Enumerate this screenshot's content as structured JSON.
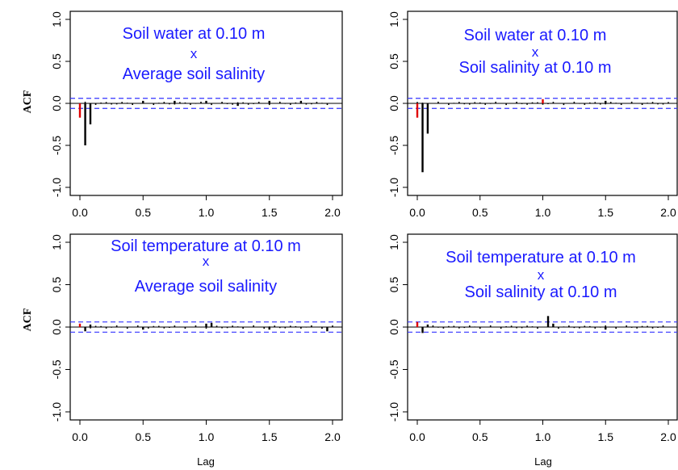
{
  "colors": {
    "frame": "#000000",
    "acf_bar": "#000000",
    "lag_zero_bar": "#e00000",
    "confidence_band": "#3333ff",
    "title_text": "#1a1aff"
  },
  "axis_labels": {
    "y": "ACF",
    "x": "Lag"
  },
  "chart_data": [
    {
      "type": "bar",
      "title_lines": [
        "Soil water at 0.10 m",
        "x",
        "Average soil salinity"
      ],
      "xlabel": "",
      "ylabel": "ACF",
      "xlim": [
        0,
        2
      ],
      "ylim": [
        -1,
        1
      ],
      "xticks": [
        "0.0",
        "0.5",
        "1.0",
        "1.5",
        "2.0"
      ],
      "yticks": [
        "1.0",
        "0.5",
        "0.0",
        "-0.5",
        "-1.0"
      ],
      "confidence_band": [
        0.06,
        -0.06
      ],
      "highlighted_lags": [
        0
      ],
      "lags": [
        0.0,
        0.042,
        0.083,
        0.5,
        0.75,
        1.0,
        1.25,
        1.5,
        1.75
      ],
      "acf": [
        -0.17,
        -0.5,
        -0.25,
        0.03,
        0.03,
        0.03,
        -0.03,
        0.03,
        0.03
      ]
    },
    {
      "type": "bar",
      "title_lines": [
        "Soil water at 0.10 m",
        "x",
        "Soil salinity at 0.10 m"
      ],
      "xlabel": "",
      "ylabel": "",
      "xlim": [
        0,
        2
      ],
      "ylim": [
        -1,
        1
      ],
      "xticks": [
        "0.0",
        "0.5",
        "1.0",
        "1.5",
        "2.0"
      ],
      "yticks": [
        "1.0",
        "0.5",
        "0.0",
        "-0.5",
        "-1.0"
      ],
      "confidence_band": [
        0.06,
        -0.06
      ],
      "highlighted_lags": [
        0,
        1.0
      ],
      "lags": [
        0.0,
        0.042,
        0.083,
        1.0,
        1.5
      ],
      "acf": [
        -0.17,
        -0.82,
        -0.36,
        0.05,
        0.03
      ]
    },
    {
      "type": "bar",
      "title_lines": [
        "Soil temperature at 0.10 m",
        "x",
        "Average soil salinity"
      ],
      "xlabel": "Lag",
      "ylabel": "ACF",
      "xlim": [
        0,
        2
      ],
      "ylim": [
        -1,
        1
      ],
      "xticks": [
        "0.0",
        "0.5",
        "1.0",
        "1.5",
        "2.0"
      ],
      "yticks": [
        "1.0",
        "0.5",
        "0.0",
        "-0.5",
        "-1.0"
      ],
      "confidence_band": [
        0.06,
        -0.06
      ],
      "highlighted_lags": [
        0
      ],
      "lags": [
        0.0,
        0.042,
        0.083,
        0.5,
        1.0,
        1.042,
        1.5,
        1.958
      ],
      "acf": [
        0.04,
        -0.05,
        0.03,
        -0.03,
        0.04,
        0.05,
        -0.03,
        -0.05
      ],
      "small_bars": true
    },
    {
      "type": "bar",
      "title_lines": [
        "Soil temperature at 0.10 m",
        "x",
        "Soil salinity at 0.10 m"
      ],
      "xlabel": "Lag",
      "ylabel": "",
      "xlim": [
        0,
        2
      ],
      "ylim": [
        -1,
        1
      ],
      "xticks": [
        "0.0",
        "0.5",
        "1.0",
        "1.5",
        "2.0"
      ],
      "yticks": [
        "1.0",
        "0.5",
        "0.0",
        "-0.5",
        "-1.0"
      ],
      "confidence_band": [
        0.06,
        -0.06
      ],
      "highlighted_lags": [
        0
      ],
      "lags": [
        0.0,
        0.042,
        0.083,
        1.042,
        1.083,
        1.5
      ],
      "acf": [
        0.06,
        -0.07,
        0.03,
        0.13,
        0.04,
        -0.03
      ],
      "small_bars": true
    }
  ]
}
